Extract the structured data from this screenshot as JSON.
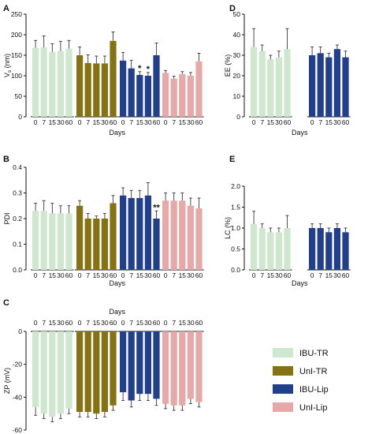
{
  "colors": {
    "IBU-TR": "#cfe7cf",
    "UnI-TR": "#857212",
    "IBU-Lip": "#223f8c",
    "UnI-Lip": "#e6a8a8",
    "axis": "#111111",
    "error": "#222222"
  },
  "legend": {
    "position": "bottom-right",
    "items": [
      {
        "key": "IBU-TR",
        "label": "IBU-TR"
      },
      {
        "key": "UnI-TR",
        "label": "UnI-TR"
      },
      {
        "key": "IBU-Lip",
        "label": "IBU-Lip"
      },
      {
        "key": "UnI-Lip",
        "label": "UnI-Lip"
      }
    ]
  },
  "chart_data": [
    {
      "panel": "A",
      "type": "bar",
      "categories": [
        "0",
        "7",
        "15",
        "30",
        "60"
      ],
      "xlabel": "Days",
      "ylabel": "V",
      "ylabel_sub": "s",
      "ylabel_unit": "(nm)",
      "ylim": [
        0,
        250
      ],
      "yticks": [
        0,
        50,
        100,
        150,
        200,
        250
      ],
      "grid": false,
      "series": [
        {
          "group": "IBU-TR",
          "values": [
            168,
            169,
            158,
            160,
            166
          ],
          "errors": [
            18,
            28,
            20,
            24,
            20
          ],
          "marks": [
            "",
            "",
            "",
            "",
            ""
          ]
        },
        {
          "group": "UnI-TR",
          "values": [
            150,
            131,
            130,
            130,
            185
          ],
          "errors": [
            20,
            20,
            18,
            18,
            22
          ],
          "marks": [
            "",
            "",
            "",
            "",
            ""
          ]
        },
        {
          "group": "IBU-Lip",
          "values": [
            137,
            118,
            102,
            100,
            150
          ],
          "errors": [
            20,
            20,
            8,
            8,
            30
          ],
          "marks": [
            "",
            "",
            "*",
            "*",
            ""
          ]
        },
        {
          "group": "UnI-Lip",
          "values": [
            107,
            93,
            104,
            100,
            135
          ],
          "errors": [
            6,
            6,
            6,
            8,
            20
          ],
          "marks": [
            "",
            "",
            "",
            "",
            ""
          ]
        }
      ]
    },
    {
      "panel": "B",
      "type": "bar",
      "categories": [
        "0",
        "7",
        "15",
        "30",
        "60"
      ],
      "xlabel": "Days",
      "ylabel": "PDI",
      "ylim": [
        0,
        0.4
      ],
      "yticks": [
        "0.0",
        "0.1",
        "0.2",
        "0.3",
        "0.4"
      ],
      "grid": false,
      "series": [
        {
          "group": "IBU-TR",
          "values": [
            0.23,
            0.23,
            0.22,
            0.22,
            0.22
          ],
          "errors": [
            0.03,
            0.04,
            0.04,
            0.03,
            0.03
          ],
          "marks": [
            "",
            "",
            "",
            "",
            ""
          ]
        },
        {
          "group": "UnI-TR",
          "values": [
            0.25,
            0.2,
            0.2,
            0.2,
            0.26
          ],
          "errors": [
            0.02,
            0.02,
            0.01,
            0.02,
            0.03
          ],
          "marks": [
            "",
            "",
            "",
            "",
            ""
          ]
        },
        {
          "group": "IBU-Lip",
          "values": [
            0.29,
            0.28,
            0.28,
            0.29,
            0.2
          ],
          "errors": [
            0.03,
            0.03,
            0.03,
            0.05,
            0.03
          ],
          "marks": [
            "",
            "",
            "",
            "",
            "**"
          ]
        },
        {
          "group": "UnI-Lip",
          "values": [
            0.27,
            0.27,
            0.27,
            0.25,
            0.24
          ],
          "errors": [
            0.03,
            0.03,
            0.03,
            0.03,
            0.04
          ],
          "marks": [
            "",
            "",
            "",
            "",
            ""
          ]
        }
      ]
    },
    {
      "panel": "C",
      "type": "bar",
      "categories": [
        "0",
        "7",
        "15",
        "30",
        "60"
      ],
      "xlabel": "Days",
      "xlabel_position": "top",
      "ylabel": "ZP (mV)",
      "ylim": [
        -60,
        0
      ],
      "yticks": [
        0,
        -20,
        -40,
        -60
      ],
      "grid": false,
      "series": [
        {
          "group": "IBU-TR",
          "values": [
            -46,
            -50,
            -52,
            -50,
            -47
          ],
          "errors": [
            5,
            3,
            3,
            3,
            3
          ],
          "marks": [
            "",
            "",
            "",
            "",
            ""
          ]
        },
        {
          "group": "UnI-TR",
          "values": [
            -49,
            -49,
            -50,
            -49,
            -45
          ],
          "errors": [
            3,
            3,
            3,
            3,
            3
          ],
          "marks": [
            "",
            "",
            "",
            "",
            ""
          ]
        },
        {
          "group": "IBU-Lip",
          "values": [
            -37,
            -42,
            -38,
            -38,
            -41
          ],
          "errors": [
            5,
            4,
            4,
            4,
            4
          ],
          "marks": [
            "",
            "",
            "",
            "",
            ""
          ]
        },
        {
          "group": "UnI-Lip",
          "values": [
            -44,
            -45,
            -45,
            -41,
            -43
          ],
          "errors": [
            3,
            3,
            3,
            3,
            3
          ],
          "marks": [
            "",
            "",
            "",
            "",
            ""
          ]
        }
      ]
    },
    {
      "panel": "D",
      "type": "bar",
      "categories": [
        "0",
        "7",
        "15",
        "30",
        "60"
      ],
      "xlabel": "Days",
      "ylabel": "EE (%)",
      "ylim": [
        0,
        50
      ],
      "yticks": [
        0,
        10,
        20,
        30,
        40,
        50
      ],
      "grid": false,
      "series": [
        {
          "group": "IBU-TR",
          "values": [
            34,
            32,
            28,
            29,
            33
          ],
          "errors": [
            9,
            3,
            2,
            3,
            10
          ],
          "marks": [
            "",
            "",
            "",
            "",
            ""
          ]
        },
        {
          "group": "IBU-Lip",
          "values": [
            30,
            31,
            29,
            33,
            29
          ],
          "errors": [
            4,
            3,
            2,
            2,
            3
          ],
          "marks": [
            "",
            "",
            "",
            "",
            ""
          ]
        }
      ]
    },
    {
      "panel": "E",
      "type": "bar",
      "categories": [
        "0",
        "7",
        "15",
        "30",
        "60"
      ],
      "xlabel": "Days",
      "ylabel": "LC (%)",
      "ylim": [
        0,
        2.0
      ],
      "yticks": [
        "0.0",
        "0.5",
        "1.0",
        "1.5",
        "2.0"
      ],
      "grid": false,
      "series": [
        {
          "group": "IBU-TR",
          "values": [
            1.1,
            1.0,
            0.9,
            0.9,
            1.0
          ],
          "errors": [
            0.3,
            0.1,
            0.1,
            0.1,
            0.3
          ],
          "marks": [
            "",
            "",
            "",
            "",
            ""
          ]
        },
        {
          "group": "IBU-Lip",
          "values": [
            1.0,
            1.0,
            0.9,
            1.0,
            0.9
          ],
          "errors": [
            0.1,
            0.1,
            0.1,
            0.1,
            0.1
          ],
          "marks": [
            "",
            "",
            "",
            "",
            ""
          ]
        }
      ]
    }
  ]
}
